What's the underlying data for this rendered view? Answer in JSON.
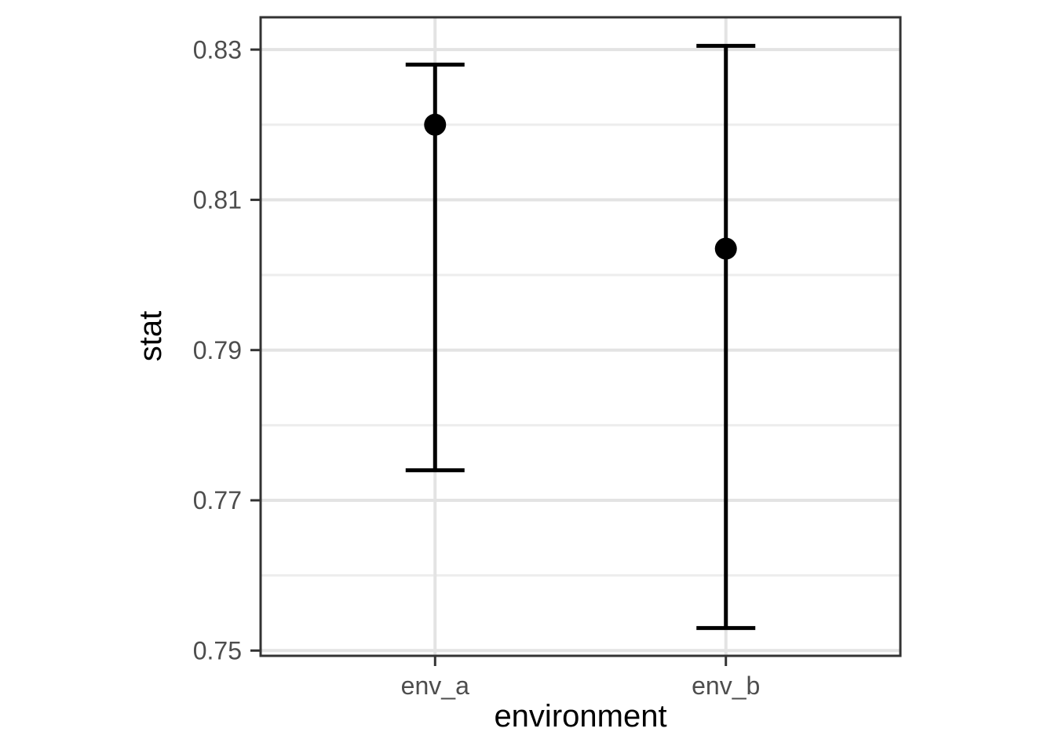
{
  "chart_data": {
    "type": "scatter",
    "subtype": "pointrange_errorbar",
    "title": "",
    "xlabel": "environment",
    "ylabel": "stat",
    "categories": [
      "env_a",
      "env_b"
    ],
    "series": [
      {
        "name": "stat",
        "values": [
          0.82,
          0.8035
        ],
        "ymin": [
          0.774,
          0.753
        ],
        "ymax": [
          0.828,
          0.8305
        ]
      }
    ],
    "ylim": [
      0.7493,
      0.8343
    ],
    "yticks": [
      0.75,
      0.77,
      0.79,
      0.81,
      0.83
    ],
    "ytick_labels": [
      "0.75",
      "0.77",
      "0.79",
      "0.81",
      "0.83"
    ],
    "yminor": [
      0.76,
      0.78,
      0.8,
      0.82
    ],
    "grid": {
      "horizontal_major": true,
      "horizontal_minor": true,
      "vertical_major_at_categories": true,
      "vertical_minor": false
    },
    "legend": "none",
    "colors": {
      "point": "#000000",
      "errorbar": "#000000",
      "axis_title": "#000000",
      "tick_label": "#4d4d4d",
      "tick_mark": "#333333",
      "panel_border": "#333333",
      "grid_major": "#e3e3e3",
      "grid_minor": "#ededed",
      "background": "#ffffff"
    }
  }
}
